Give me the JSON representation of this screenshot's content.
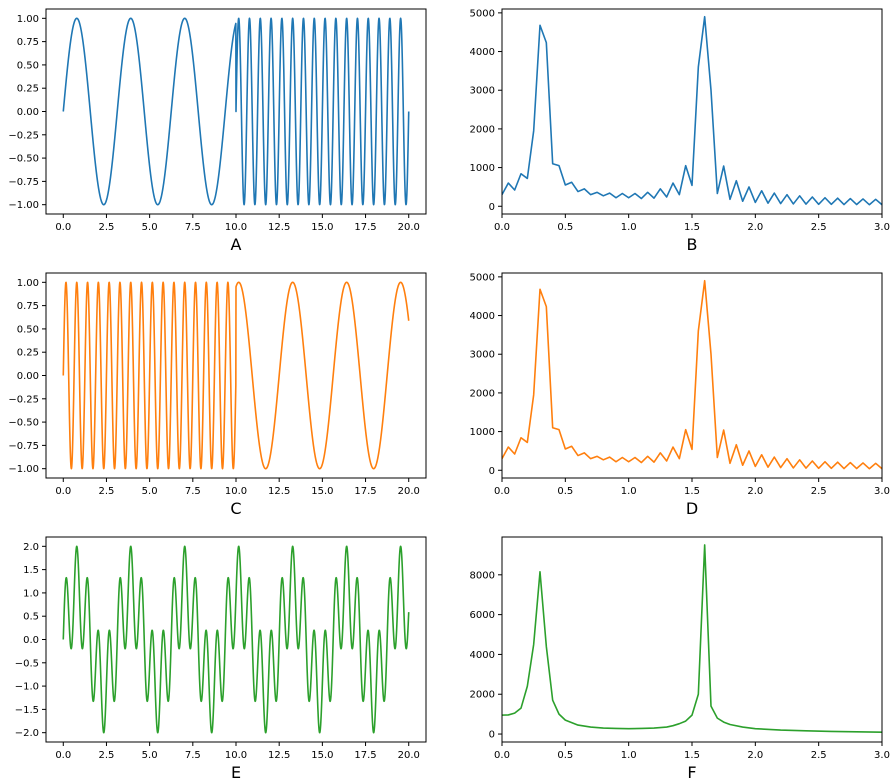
{
  "chart_data": [
    {
      "id": "A",
      "type": "line",
      "label": "A",
      "color": "#1f77b4",
      "xlim": [
        -1,
        21
      ],
      "ylim": [
        -1.1,
        1.1
      ],
      "xticks": [
        0,
        2.5,
        5,
        7.5,
        10,
        12.5,
        15,
        17.5,
        20
      ],
      "xticklabels": [
        "0.0",
        "2.5",
        "5.0",
        "7.5",
        "10.0",
        "12.5",
        "15.0",
        "17.5",
        "20.0"
      ],
      "yticks": [
        -1,
        -0.75,
        -0.5,
        -0.25,
        0,
        0.25,
        0.5,
        0.75,
        1
      ],
      "yticklabels": [
        "−1.00",
        "−0.75",
        "−0.50",
        "−0.25",
        "0.00",
        "0.25",
        "0.50",
        "0.75",
        "1.00"
      ],
      "signal": {
        "form": "piecewise-sine",
        "x_range": [
          0,
          20
        ],
        "split": 10,
        "freq_first": 0.32,
        "freq_second": 1.6
      }
    },
    {
      "id": "B",
      "type": "line",
      "label": "B",
      "color": "#1f77b4",
      "xlim": [
        0,
        3
      ],
      "ylim": [
        -200,
        5100
      ],
      "xticks": [
        0,
        0.5,
        1,
        1.5,
        2,
        2.5,
        3
      ],
      "xticklabels": [
        "0.0",
        "0.5",
        "1.0",
        "1.5",
        "2.0",
        "2.5",
        "3.0"
      ],
      "yticks": [
        0,
        1000,
        2000,
        3000,
        4000,
        5000
      ],
      "yticklabels": [
        "0",
        "1000",
        "2000",
        "3000",
        "4000",
        "5000"
      ],
      "x": [
        0,
        0.05,
        0.1,
        0.15,
        0.2,
        0.25,
        0.3,
        0.35,
        0.4,
        0.45,
        0.5,
        0.55,
        0.6,
        0.65,
        0.7,
        0.75,
        0.8,
        0.85,
        0.9,
        0.95,
        1.0,
        1.05,
        1.1,
        1.15,
        1.2,
        1.25,
        1.3,
        1.35,
        1.4,
        1.45,
        1.5,
        1.55,
        1.6,
        1.65,
        1.7,
        1.75,
        1.8,
        1.85,
        1.9,
        1.95,
        2.0,
        2.05,
        2.1,
        2.15,
        2.2,
        2.25,
        2.3,
        2.35,
        2.4,
        2.45,
        2.5,
        2.55,
        2.6,
        2.65,
        2.7,
        2.75,
        2.8,
        2.85,
        2.9,
        2.95,
        3.0
      ],
      "y": [
        300,
        600,
        420,
        840,
        720,
        1950,
        4680,
        4230,
        1100,
        1050,
        550,
        620,
        380,
        450,
        300,
        360,
        270,
        340,
        220,
        330,
        220,
        330,
        200,
        360,
        210,
        450,
        240,
        600,
        300,
        1050,
        540,
        3600,
        4900,
        3000,
        330,
        1040,
        180,
        660,
        130,
        500,
        100,
        400,
        80,
        340,
        70,
        300,
        60,
        270,
        55,
        240,
        50,
        220,
        50,
        210,
        45,
        200,
        45,
        190,
        40,
        180,
        40
      ]
    },
    {
      "id": "C",
      "type": "line",
      "label": "C",
      "color": "#ff7f0e",
      "xlim": [
        -1,
        21
      ],
      "ylim": [
        -1.1,
        1.1
      ],
      "xticks": [
        0,
        2.5,
        5,
        7.5,
        10,
        12.5,
        15,
        17.5,
        20
      ],
      "xticklabels": [
        "0.0",
        "2.5",
        "5.0",
        "7.5",
        "10.0",
        "12.5",
        "15.0",
        "17.5",
        "20.0"
      ],
      "yticks": [
        -1,
        -0.75,
        -0.5,
        -0.25,
        0,
        0.25,
        0.5,
        0.75,
        1
      ],
      "yticklabels": [
        "−1.00",
        "−0.75",
        "−0.50",
        "−0.25",
        "0.00",
        "0.25",
        "0.50",
        "0.75",
        "1.00"
      ],
      "signal": {
        "form": "piecewise-sine",
        "x_range": [
          0,
          20
        ],
        "split": 10,
        "freq_first": 1.6,
        "freq_second": 0.32
      }
    },
    {
      "id": "D",
      "type": "line",
      "label": "D",
      "color": "#ff7f0e",
      "xlim": [
        0,
        3
      ],
      "ylim": [
        -200,
        5100
      ],
      "xticks": [
        0,
        0.5,
        1,
        1.5,
        2,
        2.5,
        3
      ],
      "xticklabels": [
        "0.0",
        "0.5",
        "1.0",
        "1.5",
        "2.0",
        "2.5",
        "3.0"
      ],
      "yticks": [
        0,
        1000,
        2000,
        3000,
        4000,
        5000
      ],
      "yticklabels": [
        "0",
        "1000",
        "2000",
        "3000",
        "4000",
        "5000"
      ],
      "x": [
        0,
        0.05,
        0.1,
        0.15,
        0.2,
        0.25,
        0.3,
        0.35,
        0.4,
        0.45,
        0.5,
        0.55,
        0.6,
        0.65,
        0.7,
        0.75,
        0.8,
        0.85,
        0.9,
        0.95,
        1.0,
        1.05,
        1.1,
        1.15,
        1.2,
        1.25,
        1.3,
        1.35,
        1.4,
        1.45,
        1.5,
        1.55,
        1.6,
        1.65,
        1.7,
        1.75,
        1.8,
        1.85,
        1.9,
        1.95,
        2.0,
        2.05,
        2.1,
        2.15,
        2.2,
        2.25,
        2.3,
        2.35,
        2.4,
        2.45,
        2.5,
        2.55,
        2.6,
        2.65,
        2.7,
        2.75,
        2.8,
        2.85,
        2.9,
        2.95,
        3.0
      ],
      "y": [
        300,
        600,
        420,
        840,
        720,
        1950,
        4680,
        4230,
        1100,
        1050,
        550,
        620,
        380,
        450,
        300,
        360,
        270,
        340,
        220,
        330,
        220,
        330,
        200,
        360,
        210,
        450,
        240,
        600,
        300,
        1050,
        540,
        3600,
        4900,
        3000,
        330,
        1040,
        180,
        660,
        130,
        500,
        100,
        400,
        80,
        340,
        70,
        300,
        60,
        270,
        55,
        240,
        50,
        220,
        50,
        210,
        45,
        200,
        45,
        190,
        40,
        180,
        40
      ]
    },
    {
      "id": "E",
      "type": "line",
      "label": "E",
      "color": "#2ca02c",
      "xlim": [
        -1,
        21
      ],
      "ylim": [
        -2.2,
        2.2
      ],
      "xticks": [
        0,
        2.5,
        5,
        7.5,
        10,
        12.5,
        15,
        17.5,
        20
      ],
      "xticklabels": [
        "0.0",
        "2.5",
        "5.0",
        "7.5",
        "10.0",
        "12.5",
        "15.0",
        "17.5",
        "20.0"
      ],
      "yticks": [
        -2,
        -1.5,
        -1,
        -0.5,
        0,
        0.5,
        1,
        1.5,
        2
      ],
      "yticklabels": [
        "−2.0",
        "−1.5",
        "−1.0",
        "−0.5",
        "0.0",
        "0.5",
        "1.0",
        "1.5",
        "2.0"
      ],
      "signal": {
        "form": "sum-of-sines",
        "x_range": [
          0,
          20
        ],
        "freqs": [
          0.32,
          1.6
        ]
      }
    },
    {
      "id": "F",
      "type": "line",
      "label": "F",
      "color": "#2ca02c",
      "xlim": [
        0,
        3
      ],
      "ylim": [
        -400,
        9900
      ],
      "xticks": [
        0,
        0.5,
        1,
        1.5,
        2,
        2.5,
        3
      ],
      "xticklabels": [
        "0.0",
        "0.5",
        "1.0",
        "1.5",
        "2.0",
        "2.5",
        "3.0"
      ],
      "yticks": [
        0,
        2000,
        4000,
        6000,
        8000
      ],
      "yticklabels": [
        "0",
        "2000",
        "4000",
        "6000",
        "8000"
      ],
      "x": [
        0,
        0.05,
        0.1,
        0.15,
        0.2,
        0.25,
        0.3,
        0.35,
        0.4,
        0.45,
        0.5,
        0.6,
        0.7,
        0.8,
        0.9,
        1.0,
        1.1,
        1.2,
        1.3,
        1.35,
        1.4,
        1.45,
        1.5,
        1.55,
        1.6,
        1.65,
        1.7,
        1.75,
        1.8,
        1.9,
        2.0,
        2.2,
        2.4,
        2.6,
        2.8,
        3.0
      ],
      "y": [
        950,
        960,
        1050,
        1300,
        2400,
        4500,
        8150,
        4400,
        1700,
        1000,
        700,
        450,
        350,
        300,
        280,
        270,
        280,
        300,
        350,
        420,
        520,
        650,
        950,
        2000,
        9500,
        1400,
        800,
        600,
        480,
        350,
        270,
        200,
        160,
        130,
        110,
        95
      ]
    }
  ]
}
